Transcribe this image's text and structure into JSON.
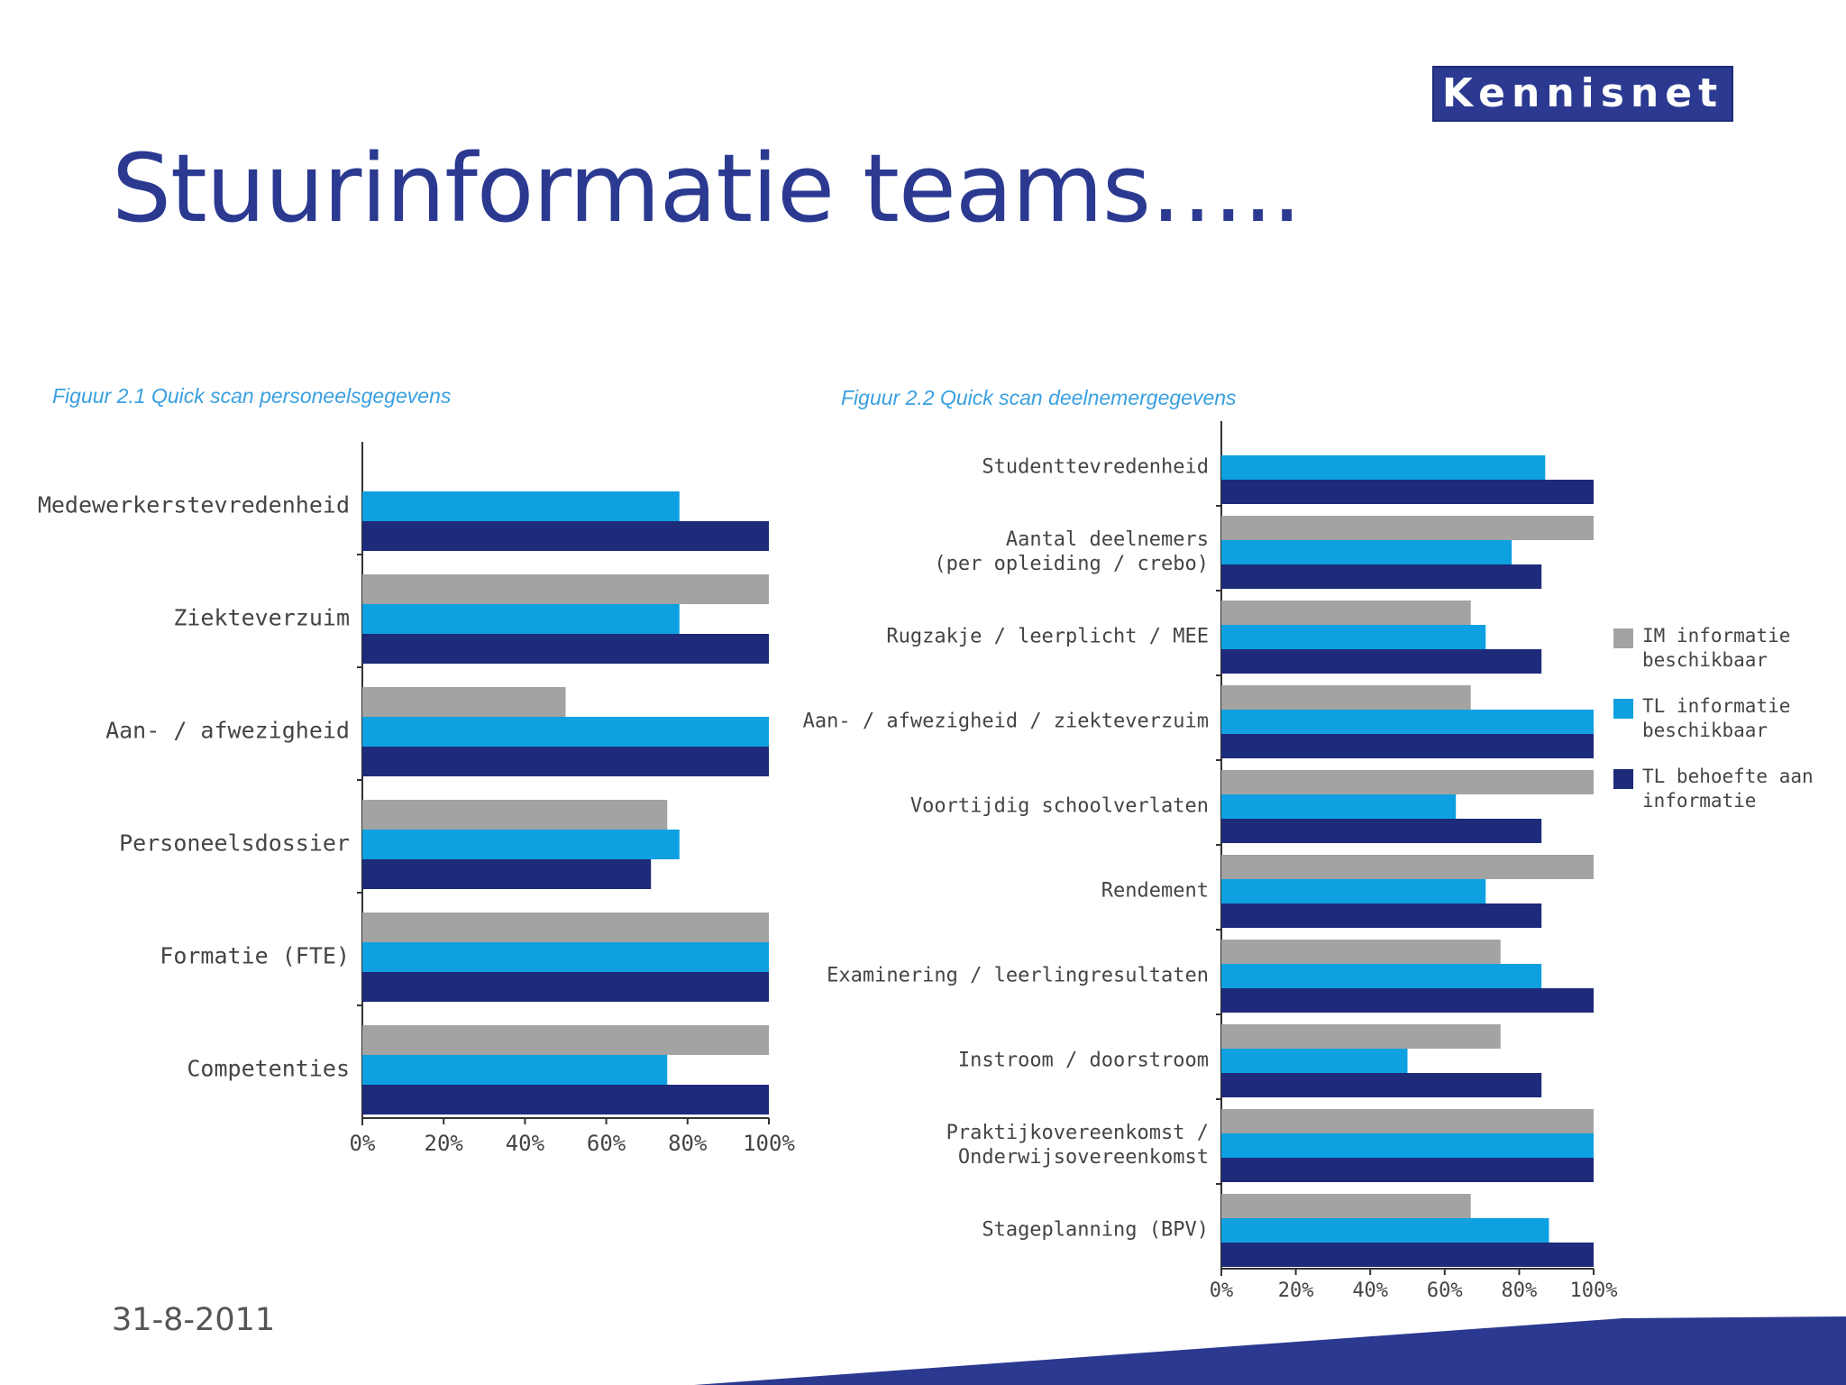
{
  "brand": {
    "logo_text": "Kennisnet"
  },
  "title": "Stuurinformatie teams…..",
  "footer": {
    "date": "31-8-2011"
  },
  "colors": {
    "gray": "#a3a3a3",
    "light_blue": "#0ea0e0",
    "navy": "#1e2a7a",
    "brand_blue": "#2b3990"
  },
  "legend": [
    {
      "label": "IM informatie beschikbaar",
      "color": "#a3a3a3"
    },
    {
      "label": "TL informatie beschikbaar",
      "color": "#0ea0e0"
    },
    {
      "label": "TL behoefte aan informatie",
      "color": "#1e2a7a"
    }
  ],
  "chart_data": [
    {
      "type": "bar",
      "orientation": "horizontal",
      "title": "Figuur 2.1 Quick scan personeelsgegevens",
      "categories": [
        "Medewerkerstevredenheid",
        "Ziekteverzuim",
        "Aan- / afwezigheid",
        "Personeelsdossier",
        "Formatie (FTE)",
        "Competenties"
      ],
      "series": [
        {
          "name": "IM informatie beschikbaar",
          "values": [
            null,
            100,
            50,
            75,
            100,
            100
          ]
        },
        {
          "name": "TL informatie beschikbaar",
          "values": [
            78,
            78,
            100,
            78,
            100,
            75
          ]
        },
        {
          "name": "TL behoefte aan informatie",
          "values": [
            100,
            100,
            100,
            71,
            100,
            100
          ]
        }
      ],
      "xlim": [
        0,
        100
      ],
      "x_ticks": [
        "0%",
        "20%",
        "40%",
        "60%",
        "80%",
        "100%"
      ],
      "legend": "none"
    },
    {
      "type": "bar",
      "orientation": "horizontal",
      "title": "Figuur 2.2 Quick scan deelnemergegevens",
      "categories": [
        "Studenttevredenheid",
        "Aantal deelnemers (per opleiding / crebo)",
        "Rugzakje / leerplicht / MEE",
        "Aan- / afwezigheid / ziekteverzuim",
        "Voortijdig schoolverlaten",
        "Rendement",
        "Examinering / leerlingresultaten",
        "Instroom / doorstroom",
        "Praktijkovereenkomst / Onderwijsovereenkomst",
        "Stageplanning (BPV)"
      ],
      "category_lines": [
        [
          "Studenttevredenheid"
        ],
        [
          "Aantal deelnemers",
          "(per opleiding / crebo)"
        ],
        [
          "Rugzakje / leerplicht / MEE"
        ],
        [
          "Aan- / afwezigheid / ziekteverzuim"
        ],
        [
          "Voortijdig schoolverlaten"
        ],
        [
          "Rendement"
        ],
        [
          "Examinering / leerlingresultaten"
        ],
        [
          "Instroom / doorstroom"
        ],
        [
          "Praktijkovereenkomst /",
          "Onderwijsovereenkomst"
        ],
        [
          "Stageplanning (BPV)"
        ]
      ],
      "series": [
        {
          "name": "IM informatie beschikbaar",
          "values": [
            null,
            100,
            67,
            67,
            100,
            100,
            75,
            75,
            100,
            67
          ]
        },
        {
          "name": "TL informatie beschikbaar",
          "values": [
            87,
            78,
            71,
            100,
            63,
            71,
            86,
            50,
            100,
            88
          ]
        },
        {
          "name": "TL behoefte aan informatie",
          "values": [
            100,
            86,
            86,
            100,
            86,
            86,
            100,
            86,
            100,
            100
          ]
        }
      ],
      "xlim": [
        0,
        100
      ],
      "x_ticks": [
        "0%",
        "20%",
        "40%",
        "60%",
        "80%",
        "100%"
      ],
      "legend": "right"
    }
  ]
}
